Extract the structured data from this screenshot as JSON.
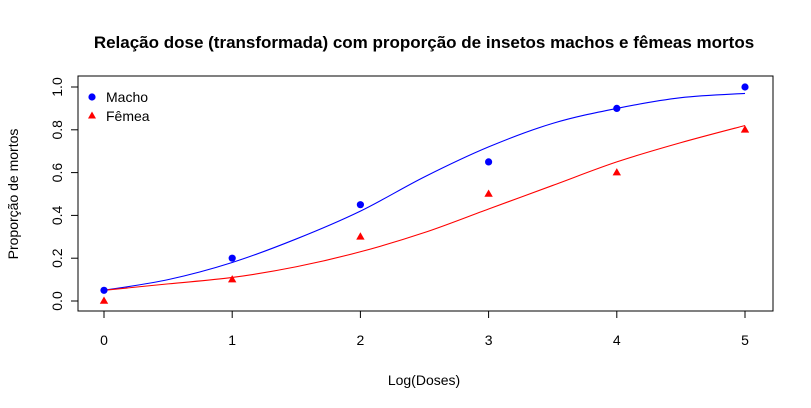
{
  "chart_data": {
    "type": "scatter",
    "title": "Relação dose (transformada) com proporção de insetos machos e fêmeas mortos",
    "xlabel": "Log(Doses)",
    "ylabel": "Proporção de mortos",
    "xlim": [
      0,
      5
    ],
    "ylim": [
      0,
      1
    ],
    "x_ticks": [
      "0",
      "1",
      "2",
      "3",
      "4",
      "5"
    ],
    "y_ticks": [
      "0.0",
      "0.2",
      "0.4",
      "0.6",
      "0.8",
      "1.0"
    ],
    "grid": false,
    "legend_position": "top-left",
    "x": [
      0,
      1,
      2,
      3,
      4,
      5
    ],
    "series": [
      {
        "name": "Macho",
        "color": "#0000ff",
        "marker": "circle",
        "values": [
          0.05,
          0.2,
          0.45,
          0.65,
          0.9,
          1.0
        ],
        "fitted_curve": {
          "x": [
            0,
            0.5,
            1,
            1.5,
            2,
            2.5,
            3,
            3.5,
            4,
            4.5,
            5
          ],
          "values": [
            0.05,
            0.1,
            0.18,
            0.29,
            0.42,
            0.58,
            0.72,
            0.83,
            0.9,
            0.95,
            0.97
          ]
        }
      },
      {
        "name": "Fêmea",
        "color": "#ff0000",
        "marker": "triangle",
        "values": [
          0.0,
          0.1,
          0.3,
          0.5,
          0.6,
          0.8
        ],
        "fitted_curve": {
          "x": [
            0,
            0.5,
            1,
            1.5,
            2,
            2.5,
            3,
            3.5,
            4,
            4.5,
            5
          ],
          "values": [
            0.05,
            0.08,
            0.11,
            0.16,
            0.23,
            0.32,
            0.43,
            0.54,
            0.65,
            0.74,
            0.82
          ]
        }
      }
    ]
  }
}
